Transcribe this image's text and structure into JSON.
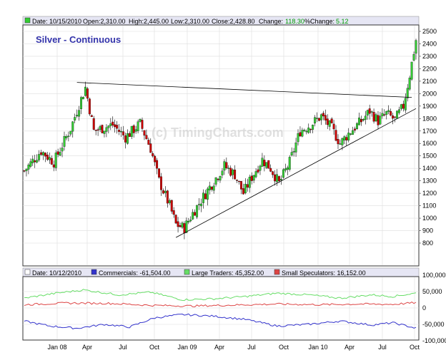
{
  "header": {
    "date": "Date: 10/15/2010",
    "open": "Open:2,310.00",
    "high": "High:2,445.00",
    "low": "Low:2,310.00",
    "close": "Close:2,428.80",
    "change_label": "Change:",
    "change_value": "118.30",
    "pct_label": "%Change:",
    "pct_value": "5.12"
  },
  "title": "Silver - Continuous",
  "watermark": "(c) TimingCharts.com",
  "lower_legend": {
    "date": "Date: 10/12/2010",
    "commercials": "Commercials: -61,504.00",
    "large": "Large Traders: 45,352.00",
    "small": "Small Speculators: 16,152.00"
  },
  "colors": {
    "up": "#33cc33",
    "down": "#cc0000",
    "commercials": "#3333cc",
    "large": "#66dd66",
    "small": "#dd4444",
    "header_bg": "#e6e6f4",
    "title": "#3333aa"
  },
  "x_labels": [
    "Jan 08",
    "Apr",
    "Jul",
    "Oct",
    "Jan 09",
    "Apr",
    "Jul",
    "Oct",
    "Jan 10",
    "Apr",
    "Jul",
    "Oct"
  ],
  "chart_data": [
    {
      "type": "candlestick",
      "title": "Silver - Continuous",
      "ylim": [
        760,
        2560
      ],
      "yticks": [
        800,
        900,
        1000,
        1100,
        1200,
        1300,
        1400,
        1500,
        1600,
        1700,
        1800,
        1900,
        2000,
        2100,
        2200,
        2300,
        2400,
        2500
      ],
      "x_range": [
        "2007-11",
        "2010-10"
      ],
      "anchors": [
        {
          "t": 0,
          "v": 1380
        },
        {
          "t": 8,
          "v": 1540
        },
        {
          "t": 14,
          "v": 1450
        },
        {
          "t": 22,
          "v": 1720
        },
        {
          "t": 29,
          "v": 2050
        },
        {
          "t": 33,
          "v": 1700
        },
        {
          "t": 42,
          "v": 1750
        },
        {
          "t": 48,
          "v": 1650
        },
        {
          "t": 55,
          "v": 1760
        },
        {
          "t": 60,
          "v": 1560
        },
        {
          "t": 64,
          "v": 1300
        },
        {
          "t": 69,
          "v": 1100
        },
        {
          "t": 72,
          "v": 950
        },
        {
          "t": 76,
          "v": 920
        },
        {
          "t": 80,
          "v": 1040
        },
        {
          "t": 88,
          "v": 1250
        },
        {
          "t": 95,
          "v": 1420
        },
        {
          "t": 100,
          "v": 1350
        },
        {
          "t": 104,
          "v": 1200
        },
        {
          "t": 108,
          "v": 1330
        },
        {
          "t": 113,
          "v": 1470
        },
        {
          "t": 117,
          "v": 1400
        },
        {
          "t": 121,
          "v": 1280
        },
        {
          "t": 126,
          "v": 1450
        },
        {
          "t": 131,
          "v": 1700
        },
        {
          "t": 136,
          "v": 1750
        },
        {
          "t": 141,
          "v": 1820
        },
        {
          "t": 146,
          "v": 1720
        },
        {
          "t": 150,
          "v": 1600
        },
        {
          "t": 154,
          "v": 1680
        },
        {
          "t": 160,
          "v": 1780
        },
        {
          "t": 164,
          "v": 1860
        },
        {
          "t": 168,
          "v": 1780
        },
        {
          "t": 172,
          "v": 1840
        },
        {
          "t": 176,
          "v": 1790
        },
        {
          "t": 180,
          "v": 1900
        },
        {
          "t": 183,
          "v": 2150
        },
        {
          "t": 186,
          "v": 2430
        }
      ],
      "trendlines": [
        {
          "from": {
            "t": 25,
            "v": 2090
          },
          "to": {
            "t": 184,
            "v": 1970
          }
        },
        {
          "from": {
            "t": 72,
            "v": 845
          },
          "to": {
            "t": 186,
            "v": 1880
          }
        }
      ]
    },
    {
      "type": "line",
      "ylim": [
        -100000,
        100000
      ],
      "yticks": [
        -100000,
        -50000,
        0,
        50000,
        100000
      ],
      "ytick_labels": [
        "-100,000",
        "-50,000",
        "0",
        "50,000",
        "100,000"
      ],
      "series": [
        {
          "name": "Commercials",
          "anchors": [
            {
              "t": 0,
              "v": -40000
            },
            {
              "t": 12,
              "v": -55000
            },
            {
              "t": 25,
              "v": -62000
            },
            {
              "t": 38,
              "v": -50000
            },
            {
              "t": 50,
              "v": -58000
            },
            {
              "t": 62,
              "v": -30000
            },
            {
              "t": 75,
              "v": -20000
            },
            {
              "t": 90,
              "v": -25000
            },
            {
              "t": 105,
              "v": -35000
            },
            {
              "t": 120,
              "v": -55000
            },
            {
              "t": 135,
              "v": -50000
            },
            {
              "t": 150,
              "v": -40000
            },
            {
              "t": 165,
              "v": -52000
            },
            {
              "t": 175,
              "v": -45000
            },
            {
              "t": 186,
              "v": -61504
            }
          ]
        },
        {
          "name": "Large Traders",
          "anchors": [
            {
              "t": 0,
              "v": 30000
            },
            {
              "t": 15,
              "v": 45000
            },
            {
              "t": 28,
              "v": 55000
            },
            {
              "t": 45,
              "v": 40000
            },
            {
              "t": 60,
              "v": 48000
            },
            {
              "t": 75,
              "v": 25000
            },
            {
              "t": 90,
              "v": 28000
            },
            {
              "t": 105,
              "v": 35000
            },
            {
              "t": 120,
              "v": 45000
            },
            {
              "t": 135,
              "v": 40000
            },
            {
              "t": 150,
              "v": 30000
            },
            {
              "t": 165,
              "v": 40000
            },
            {
              "t": 175,
              "v": 35000
            },
            {
              "t": 186,
              "v": 45352
            }
          ]
        },
        {
          "name": "Small Speculators",
          "anchors": [
            {
              "t": 0,
              "v": 10000
            },
            {
              "t": 20,
              "v": 15000
            },
            {
              "t": 40,
              "v": 14000
            },
            {
              "t": 60,
              "v": 8000
            },
            {
              "t": 80,
              "v": 6000
            },
            {
              "t": 100,
              "v": 9000
            },
            {
              "t": 120,
              "v": 12000
            },
            {
              "t": 140,
              "v": 10000
            },
            {
              "t": 160,
              "v": 12000
            },
            {
              "t": 175,
              "v": 11000
            },
            {
              "t": 186,
              "v": 16152
            }
          ]
        }
      ]
    }
  ]
}
